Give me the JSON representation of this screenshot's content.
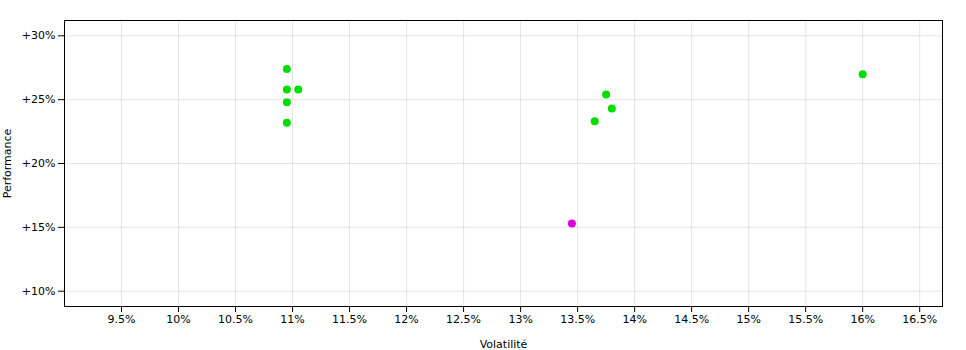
{
  "chart_data": {
    "type": "scatter",
    "xlabel": "Volatilité",
    "ylabel": "Performance",
    "xlim": [
      0.09,
      0.167
    ],
    "ylim": [
      0.088,
      0.312
    ],
    "xticks": [
      {
        "value": 0.095,
        "label": "9.5%"
      },
      {
        "value": 0.1,
        "label": "10%"
      },
      {
        "value": 0.105,
        "label": "10.5%"
      },
      {
        "value": 0.11,
        "label": "11%"
      },
      {
        "value": 0.115,
        "label": "11.5%"
      },
      {
        "value": 0.12,
        "label": "12%"
      },
      {
        "value": 0.125,
        "label": "12.5%"
      },
      {
        "value": 0.13,
        "label": "13%"
      },
      {
        "value": 0.135,
        "label": "13.5%"
      },
      {
        "value": 0.14,
        "label": "14%"
      },
      {
        "value": 0.145,
        "label": "14.5%"
      },
      {
        "value": 0.15,
        "label": "15%"
      },
      {
        "value": 0.155,
        "label": "15.5%"
      },
      {
        "value": 0.16,
        "label": "16%"
      },
      {
        "value": 0.165,
        "label": "16.5%"
      }
    ],
    "yticks": [
      {
        "value": 0.1,
        "label": "+10%"
      },
      {
        "value": 0.15,
        "label": "+15%"
      },
      {
        "value": 0.2,
        "label": "+20%"
      },
      {
        "value": 0.25,
        "label": "+25%"
      },
      {
        "value": 0.3,
        "label": "+30%"
      }
    ],
    "grid": true,
    "series": [
      {
        "color": "#00dd00",
        "x": [
          0.1095,
          0.1095,
          0.1105,
          0.1095,
          0.1095,
          0.1375,
          0.138,
          0.1365,
          0.16
        ],
        "values": [
          0.274,
          0.258,
          0.258,
          0.248,
          0.232,
          0.254,
          0.243,
          0.233,
          0.27
        ]
      },
      {
        "color": "#dd00dd",
        "x": [
          0.1345
        ],
        "values": [
          0.153
        ]
      }
    ]
  }
}
